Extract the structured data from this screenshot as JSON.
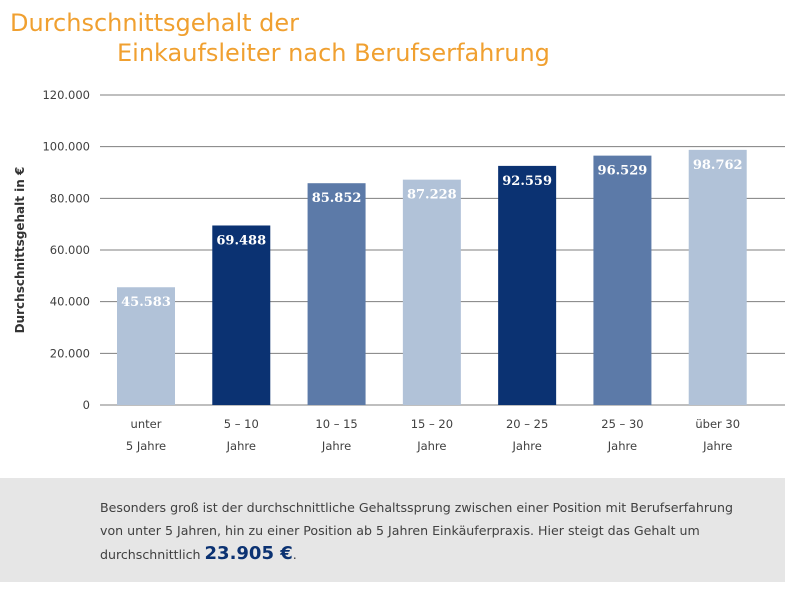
{
  "chart_data": {
    "type": "bar",
    "title_line1": "Durchschnittsgehalt der",
    "title_line2": "Einkaufsleiter nach Berufserfahrung",
    "ylabel": "Durchschnittsgehalt  in  €",
    "xlabel": "",
    "ylim": [
      0,
      120000
    ],
    "yticks": [
      0,
      20000,
      40000,
      60000,
      80000,
      100000,
      120000
    ],
    "ytick_labels": [
      "0",
      "20.000",
      "40.000",
      "60.000",
      "80.000",
      "100.000",
      "120.000"
    ],
    "grid": true,
    "categories": [
      [
        "unter",
        "5 Jahre"
      ],
      [
        "5 – 10",
        "Jahre"
      ],
      [
        "10 – 15",
        "Jahre"
      ],
      [
        "15 – 20",
        "Jahre"
      ],
      [
        "20 – 25",
        "Jahre"
      ],
      [
        "25 – 30",
        "Jahre"
      ],
      [
        "über 30",
        "Jahre"
      ]
    ],
    "values": [
      45583,
      69488,
      85852,
      87228,
      92559,
      96529,
      98762
    ],
    "value_labels": [
      "45.583",
      "69.488",
      "85.852",
      "87.228",
      "92.559",
      "96.529",
      "98.762"
    ],
    "bar_colors": [
      "#b1c2d8",
      "#0b3272",
      "#5c7aa8",
      "#b1c2d8",
      "#0b3272",
      "#5c7aa8",
      "#b1c2d8"
    ]
  },
  "colors": {
    "title": "#f0a030",
    "grid": "#7f7f7f",
    "axis_text": "#404040",
    "footer_bg": "#e6e6e6",
    "highlight": "#0b3272"
  },
  "footer": {
    "text_before": "Besonders groß ist der durchschnittliche Gehaltssprung zwischen einer Position mit Berufserfahrung von unter 5 Jahren, hin zu einer Position ab 5 Jahren Einkäuferpraxis. Hier steigt das Gehalt um durchschnittlich ",
    "highlight": "23.905 €",
    "text_after": "."
  }
}
